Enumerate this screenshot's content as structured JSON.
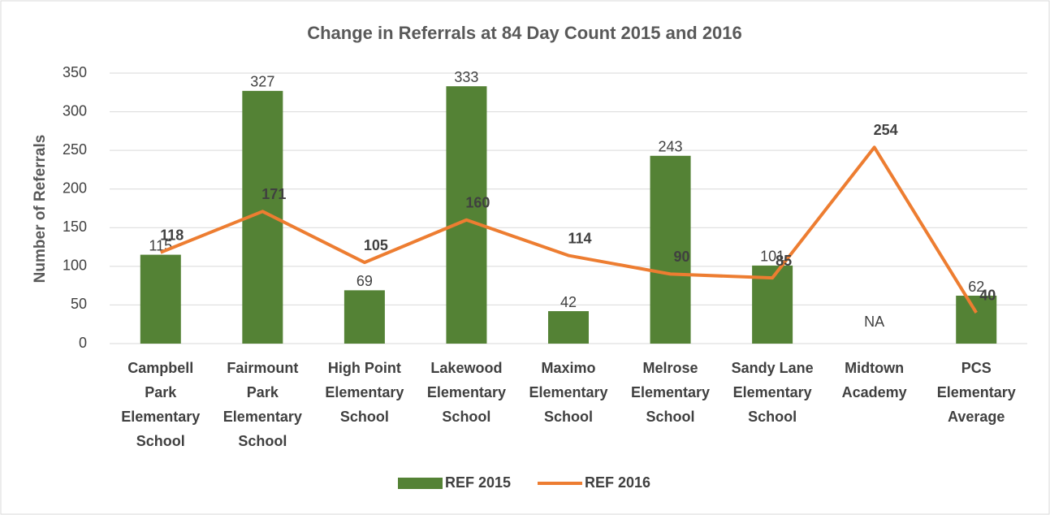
{
  "chart_data": {
    "type": "bar-line",
    "title": "Change in Referrals at 84 Day Count 2015 and 2016",
    "y_label": "Number of Referrals",
    "categories": [
      "Campbell Park Elementary School",
      "Fairmount Park Elementary School",
      "High Point Elementary School",
      "Lakewood Elementary School",
      "Maximo Elementary School",
      "Melrose Elementary School",
      "Sandy Lane Elementary School",
      "Midtown Academy",
      "PCS Elementary Average"
    ],
    "series": [
      {
        "name": "REF 2015",
        "type": "bar",
        "color": "#548235",
        "values": [
          115,
          327,
          69,
          333,
          42,
          243,
          101,
          null,
          62
        ],
        "value_labels": [
          "115",
          "327",
          "69",
          "333",
          "42",
          "243",
          "101",
          "NA",
          "62"
        ]
      },
      {
        "name": "REF 2016",
        "type": "line",
        "color": "#ed7d31",
        "values": [
          118,
          171,
          105,
          160,
          114,
          90,
          85,
          254,
          40
        ]
      }
    ],
    "ylim": [
      0,
      350
    ],
    "yticks": [
      0,
      50,
      100,
      150,
      200,
      250,
      300,
      350
    ],
    "grid": true,
    "legend": "bottom"
  }
}
